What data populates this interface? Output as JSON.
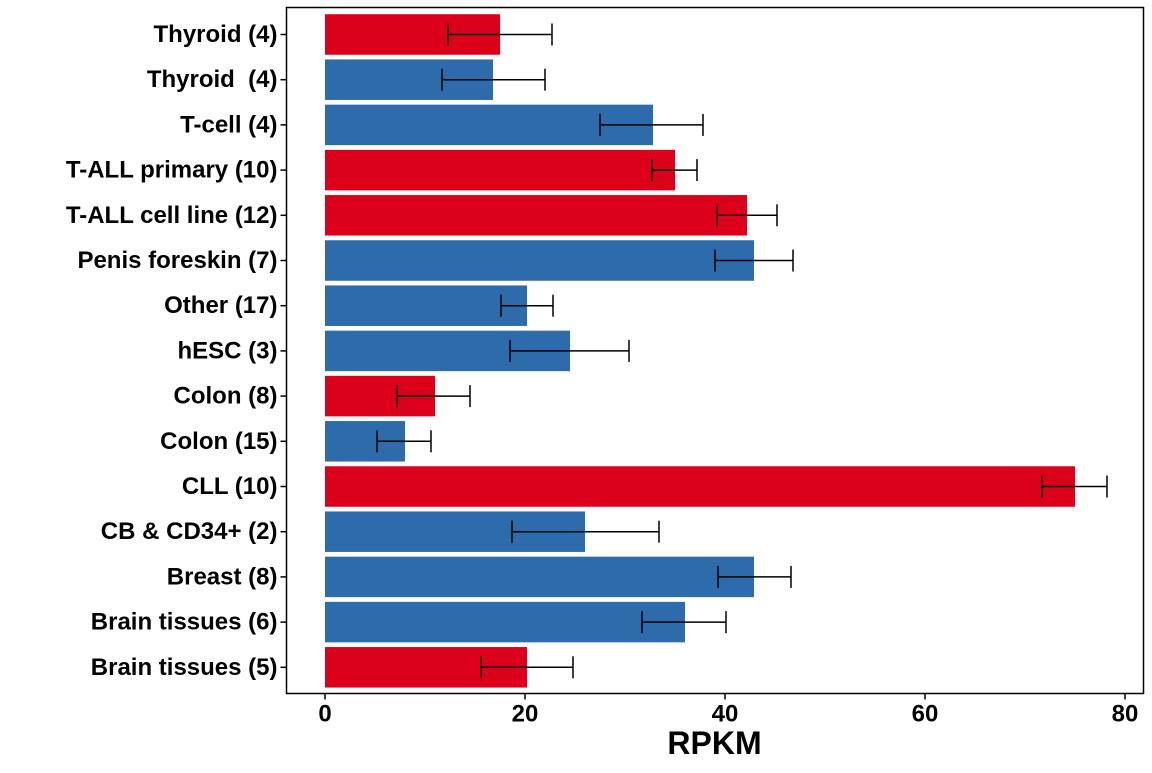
{
  "chart_data": {
    "type": "bar",
    "orientation": "horizontal",
    "xlabel": "RPKM",
    "ylabel": "",
    "title": "",
    "xlim": [
      0,
      80
    ],
    "xticks": [
      "0",
      "20",
      "40",
      "60",
      "80"
    ],
    "grid": false,
    "legend": "none",
    "colors": {
      "red": "#DC001B",
      "blue": "#2E6BAA",
      "errorbar": "#000000",
      "frame": "#000000"
    },
    "categories": [
      "Thyroid (4)",
      "Thyroid  (4)",
      "T-cell (4)",
      "T-ALL primary (10)",
      "T-ALL cell line (12)",
      "Penis foreskin (7)",
      "Other (17)",
      "hESC (3)",
      "Colon (8)",
      "Colon (15)",
      "CLL (10)",
      "CB & CD34+ (2)",
      "Breast (8)",
      "Brain tissues (6)",
      "Brain tissues (5)"
    ],
    "values": [
      17.5,
      16.8,
      32.8,
      35.0,
      42.2,
      42.9,
      20.2,
      24.5,
      11.0,
      8.0,
      75.0,
      26.0,
      42.9,
      36.0,
      20.2
    ],
    "error_low": [
      12.3,
      11.7,
      27.5,
      32.7,
      39.2,
      39.0,
      17.6,
      18.5,
      7.2,
      5.2,
      71.7,
      18.7,
      39.3,
      31.7,
      15.6
    ],
    "error_high": [
      22.7,
      22.0,
      37.8,
      37.2,
      45.2,
      46.8,
      22.8,
      30.4,
      14.5,
      10.6,
      78.2,
      33.4,
      46.6,
      40.1,
      24.8
    ],
    "bar_color": [
      "red",
      "blue",
      "blue",
      "red",
      "red",
      "blue",
      "blue",
      "blue",
      "red",
      "blue",
      "red",
      "blue",
      "blue",
      "blue",
      "red"
    ]
  }
}
